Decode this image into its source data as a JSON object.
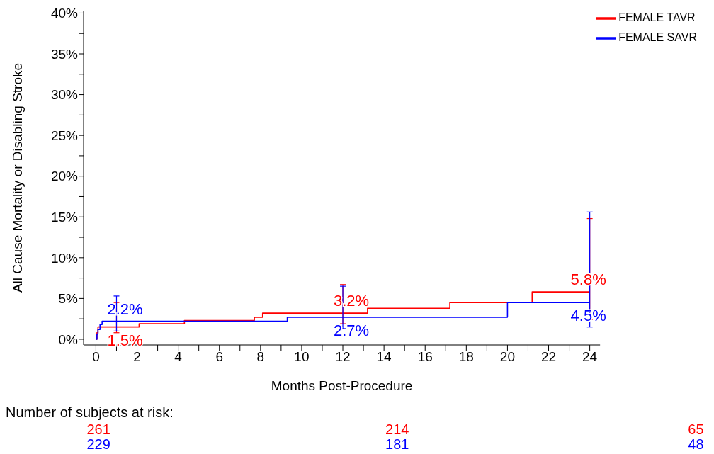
{
  "chart_data": {
    "type": "step",
    "xlabel": "Months Post-Procedure",
    "ylabel": "All Cause Mortality or Disabling Stroke",
    "xlim": [
      -0.6,
      24.5
    ],
    "ylim": [
      -0.7,
      40.3
    ],
    "xticks": [
      0,
      {
        "value": 1,
        "label": null
      },
      2,
      {
        "value": 3,
        "label": null
      },
      4,
      {
        "value": 5,
        "label": null
      },
      6,
      {
        "value": 7,
        "label": null
      },
      8,
      {
        "value": 9,
        "label": null
      },
      10,
      {
        "value": 11,
        "label": null
      },
      12,
      {
        "value": 13,
        "label": null
      },
      14,
      {
        "value": 15,
        "label": null
      },
      16,
      {
        "value": 17,
        "label": null
      },
      18,
      {
        "value": 19,
        "label": null
      },
      20,
      {
        "value": 21,
        "label": null
      },
      22,
      {
        "value": 23,
        "label": null
      },
      24
    ],
    "yticks": [
      {
        "value": 0,
        "label": "0%"
      },
      {
        "value": 2.5,
        "label": null
      },
      {
        "value": 5,
        "label": "5%"
      },
      {
        "value": 7.5,
        "label": null
      },
      {
        "value": 10,
        "label": "10%"
      },
      {
        "value": 12.5,
        "label": null
      },
      {
        "value": 15,
        "label": "15%"
      },
      {
        "value": 17.5,
        "label": null
      },
      {
        "value": 20,
        "label": "20%"
      },
      {
        "value": 22.5,
        "label": null
      },
      {
        "value": 25,
        "label": "25%"
      },
      {
        "value": 27.5,
        "label": null
      },
      {
        "value": 30,
        "label": "30%"
      },
      {
        "value": 32.5,
        "label": null
      },
      {
        "value": 35,
        "label": "35%"
      },
      {
        "value": 37.5,
        "label": null
      },
      {
        "value": 40,
        "label": "40%"
      }
    ],
    "grid": false,
    "legend": "top right",
    "marker": "none",
    "line_style": "solid",
    "series": [
      {
        "name": "FEMALE TAVR",
        "color": "#ff0000",
        "x": [
          0,
          0.05,
          0.1,
          1,
          2.1,
          4.3,
          7.7,
          8.1,
          12,
          13.2,
          17.2,
          21.2,
          24
        ],
        "values": [
          0,
          0.8,
          1.5,
          1.5,
          1.9,
          2.3,
          2.7,
          3.2,
          3.2,
          3.8,
          4.5,
          5.8,
          5.8
        ],
        "errors": [
          null,
          null,
          null,
          [
            0.8,
            4.5
          ],
          null,
          null,
          null,
          null,
          [
            1.9,
            6.7
          ],
          null,
          null,
          null,
          [
            2.4,
            14.8
          ]
        ]
      },
      {
        "name": "FEMALE SAVR",
        "color": "#0000ff",
        "x": [
          0,
          0.05,
          0.1,
          0.2,
          0.3,
          1,
          9.3,
          12,
          20,
          24
        ],
        "values": [
          0,
          0.6,
          1.2,
          1.8,
          2.2,
          2.2,
          2.7,
          2.7,
          4.5,
          4.5
        ],
        "errors": [
          null,
          null,
          null,
          null,
          null,
          [
            1.0,
            5.3
          ],
          null,
          [
            1.3,
            6.5
          ],
          null,
          [
            1.5,
            15.6
          ]
        ]
      }
    ],
    "annotations": [
      {
        "text": "2.2%",
        "x": 1,
        "y": 2.2
      },
      {
        "text": "1.5%",
        "x": 1,
        "y": 1.5
      },
      {
        "text": "3.2%",
        "x": 12,
        "y": 3.2
      },
      {
        "text": "2.7%",
        "x": 12,
        "y": 2.7
      },
      {
        "text": "5.8%",
        "x": 24,
        "y": 5.8
      },
      {
        "text": "4.5%",
        "x": 24,
        "y": 4.5
      },
      "Number of subjects at risk:",
      "261",
      "214",
      "65",
      "229",
      "181",
      "48"
    ]
  }
}
